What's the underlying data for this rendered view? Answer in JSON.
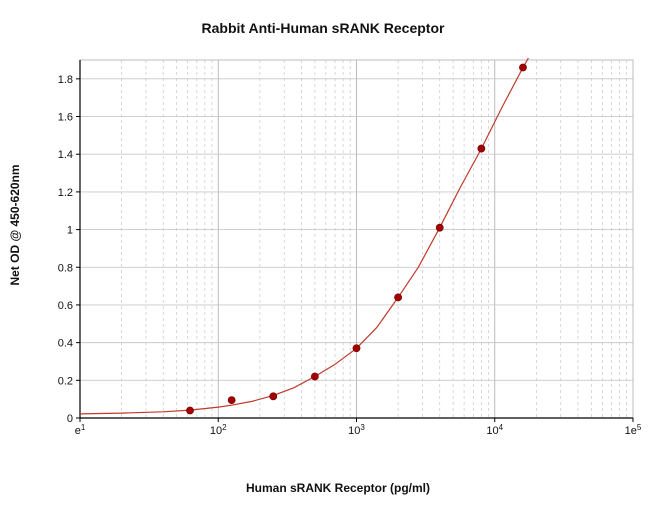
{
  "chart_data": {
    "type": "scatter",
    "title": "Rabbit Anti-Human sRANK Receptor",
    "xlabel": "Human sRANK Receptor (pg/ml)",
    "ylabel": "Net OD @ 450-620nm",
    "x_scale": "log",
    "xlim": [
      10,
      100000
    ],
    "ylim": [
      0,
      1.9
    ],
    "x_ticks": [
      {
        "value": 10,
        "base": "e",
        "exp": "1"
      },
      {
        "value": 100,
        "base": "10",
        "exp": "2"
      },
      {
        "value": 1000,
        "base": "10",
        "exp": "3"
      },
      {
        "value": 10000,
        "base": "10",
        "exp": "4"
      },
      {
        "value": 100000,
        "base": "1e",
        "exp": "5"
      }
    ],
    "y_ticks": [
      "0",
      "0.2",
      "0.4",
      "0.6",
      "0.8",
      "1",
      "1.2",
      "1.4",
      "1.6",
      "1.8"
    ],
    "grid": true,
    "legend": "none",
    "colors": {
      "points": "#a00000",
      "curve": "#c0392b",
      "grid": "#c8c8c8",
      "axis": "#000000"
    },
    "points": [
      {
        "x": 62.5,
        "y": 0.04
      },
      {
        "x": 125,
        "y": 0.095
      },
      {
        "x": 250,
        "y": 0.115
      },
      {
        "x": 500,
        "y": 0.22
      },
      {
        "x": 1000,
        "y": 0.37
      },
      {
        "x": 2000,
        "y": 0.64
      },
      {
        "x": 4000,
        "y": 1.01
      },
      {
        "x": 8000,
        "y": 1.43
      },
      {
        "x": 16000,
        "y": 1.86
      }
    ],
    "curve": [
      {
        "x": 10,
        "y": 0.022
      },
      {
        "x": 20,
        "y": 0.026
      },
      {
        "x": 40,
        "y": 0.033
      },
      {
        "x": 62.5,
        "y": 0.042
      },
      {
        "x": 100,
        "y": 0.058
      },
      {
        "x": 125,
        "y": 0.068
      },
      {
        "x": 175,
        "y": 0.088
      },
      {
        "x": 250,
        "y": 0.12
      },
      {
        "x": 350,
        "y": 0.16
      },
      {
        "x": 500,
        "y": 0.22
      },
      {
        "x": 700,
        "y": 0.285
      },
      {
        "x": 1000,
        "y": 0.37
      },
      {
        "x": 1400,
        "y": 0.48
      },
      {
        "x": 2000,
        "y": 0.64
      },
      {
        "x": 2800,
        "y": 0.8
      },
      {
        "x": 4000,
        "y": 1.01
      },
      {
        "x": 5600,
        "y": 1.22
      },
      {
        "x": 8000,
        "y": 1.43
      },
      {
        "x": 11300,
        "y": 1.65
      },
      {
        "x": 16000,
        "y": 1.86
      },
      {
        "x": 17500,
        "y": 1.91
      }
    ]
  }
}
